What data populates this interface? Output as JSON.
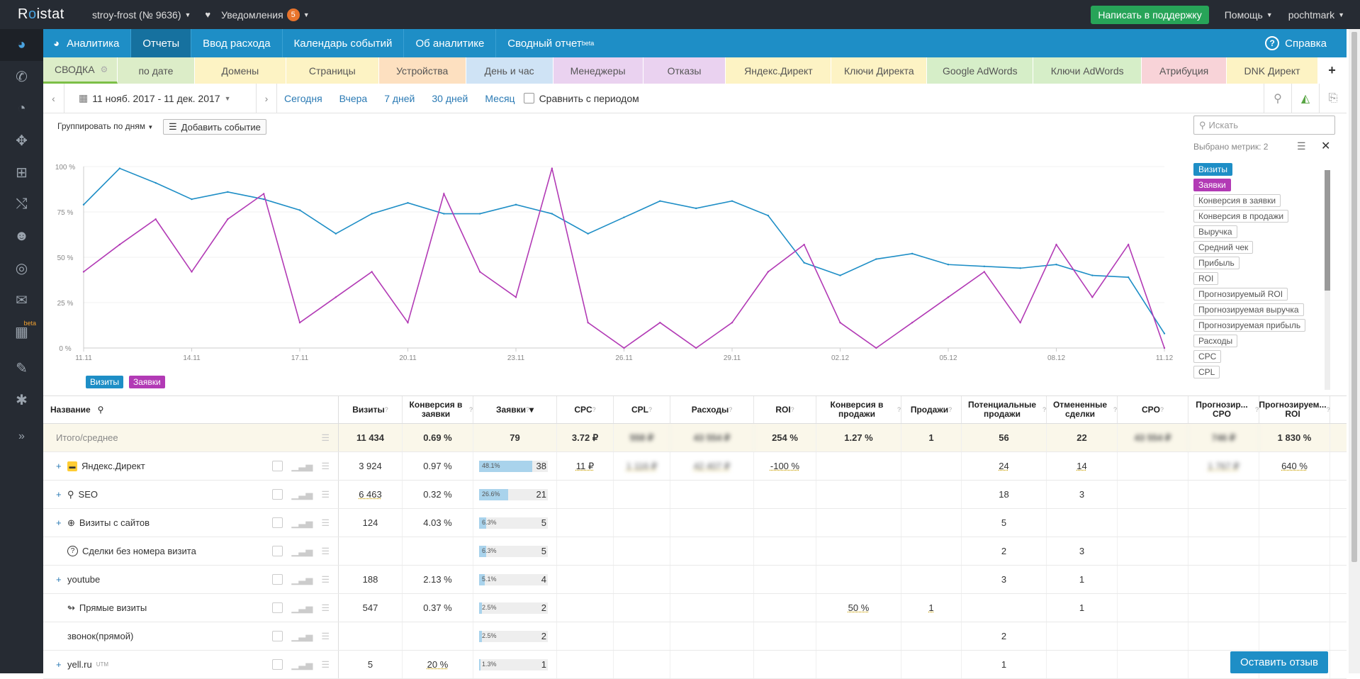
{
  "topbar": {
    "logo_left": "R",
    "logo_dot": "o",
    "logo_right": "istat",
    "project": "stroy-frost (№ 9636)",
    "notifications_label": "Уведомления",
    "notifications_count": "5",
    "support_button": "Написать в поддержку",
    "help": "Помощь",
    "user": "pochtmark"
  },
  "sidebar": {
    "icons": [
      "pie-chart-icon",
      "phone-icon",
      "dashboard-icon",
      "crosshair-icon",
      "sitemap-icon",
      "shuffle-icon",
      "users-icon",
      "target-icon",
      "mail-icon",
      "barcode-icon",
      "tools-icon",
      "settings-icon",
      "expand-icon"
    ],
    "beta": "beta"
  },
  "nav": {
    "items": [
      "Аналитика",
      "Отчеты",
      "Ввод расхода",
      "Календарь событий",
      "Об аналитике",
      "Сводный отчет"
    ],
    "beta_sup": "beta",
    "help": "Справка"
  },
  "tabs": [
    {
      "label": "СВОДКА",
      "color": "#dcedc8"
    },
    {
      "label": "по дате",
      "color": "#dcedc8"
    },
    {
      "label": "Домены",
      "color": "#fdf3c4"
    },
    {
      "label": "Страницы",
      "color": "#fdf3c4"
    },
    {
      "label": "Устройства",
      "color": "#fde0c0"
    },
    {
      "label": "День и час",
      "color": "#cfe3f5"
    },
    {
      "label": "Менеджеры",
      "color": "#ead2f0"
    },
    {
      "label": "Отказы",
      "color": "#ead2f0"
    },
    {
      "label": "Яндекс.Директ",
      "color": "#fdf3c4"
    },
    {
      "label": "Ключи Директа",
      "color": "#fdf3c4"
    },
    {
      "label": "Google AdWords",
      "color": "#d6eec8"
    },
    {
      "label": "Ключи AdWords",
      "color": "#d6eec8"
    },
    {
      "label": "Атрибуция",
      "color": "#f8d3d8"
    },
    {
      "label": "DNK Директ",
      "color": "#fdf3c4"
    },
    {
      "label": "+",
      "color": "#ffffff"
    }
  ],
  "datebar": {
    "range": "11 нояб. 2017 - 11 дек. 2017",
    "presets": [
      "Сегодня",
      "Вчера",
      "7 дней",
      "30 дней",
      "Месяц"
    ],
    "compare": "Сравнить с периодом"
  },
  "chart": {
    "group_by": "Группировать по дням",
    "add_event": "Добавить событие",
    "legend": [
      {
        "name": "Визиты",
        "color": "#1e8ec6"
      },
      {
        "name": "Заявки",
        "color": "#b23ab5"
      }
    ]
  },
  "chart_data": {
    "type": "line",
    "y_ticks": [
      "0 %",
      "25 %",
      "50 %",
      "75 %",
      "100 %"
    ],
    "x_ticks": [
      "11.11",
      "14.11",
      "17.11",
      "20.11",
      "23.11",
      "26.11",
      "29.11",
      "02.12",
      "05.12",
      "08.12",
      "11.12"
    ],
    "ylim": [
      0,
      100
    ],
    "x": [
      "11.11",
      "12.11",
      "13.11",
      "14.11",
      "15.11",
      "16.11",
      "17.11",
      "18.11",
      "19.11",
      "20.11",
      "21.11",
      "22.11",
      "23.11",
      "24.11",
      "25.11",
      "26.11",
      "27.11",
      "28.11",
      "29.11",
      "30.11",
      "01.12",
      "02.12",
      "03.12",
      "04.12",
      "05.12",
      "06.12",
      "07.12",
      "08.12",
      "09.12",
      "10.12",
      "11.12"
    ],
    "series": [
      {
        "name": "Визиты",
        "color": "#1e8ec6",
        "values": [
          79,
          99,
          91,
          82,
          86,
          82,
          76,
          63,
          74,
          80,
          74,
          74,
          79,
          74,
          63,
          72,
          81,
          77,
          81,
          73,
          47,
          40,
          49,
          52,
          46,
          45,
          44,
          46,
          40,
          39,
          8
        ]
      },
      {
        "name": "Заявки",
        "color": "#b23ab5",
        "values": [
          42,
          57,
          71,
          42,
          71,
          85,
          14,
          28,
          42,
          14,
          85,
          42,
          28,
          99,
          14,
          0,
          14,
          0,
          14,
          42,
          57,
          14,
          0,
          14,
          28,
          42,
          14,
          57,
          28,
          57,
          0
        ]
      }
    ]
  },
  "metrics": {
    "search_placeholder": "Искать",
    "selected": "Выбрано метрик: 2",
    "items": [
      {
        "label": "Визиты",
        "state": "blue"
      },
      {
        "label": "Заявки",
        "state": "purple"
      },
      {
        "label": "Конверсия в заявки",
        "state": ""
      },
      {
        "label": "Конверсия в продажи",
        "state": ""
      },
      {
        "label": "Выручка",
        "state": ""
      },
      {
        "label": "Средний чек",
        "state": ""
      },
      {
        "label": "Прибыль",
        "state": ""
      },
      {
        "label": "ROI",
        "state": ""
      },
      {
        "label": "Прогнозируемый ROI",
        "state": ""
      },
      {
        "label": "Прогнозируемая выручка",
        "state": ""
      },
      {
        "label": "Прогнозируемая прибыль",
        "state": ""
      },
      {
        "label": "Расходы",
        "state": ""
      },
      {
        "label": "CPC",
        "state": ""
      },
      {
        "label": "CPL",
        "state": ""
      }
    ]
  },
  "table": {
    "headers": [
      "Название",
      "Визиты",
      "Конверсия в заявки",
      "Заявки",
      "CPC",
      "CPL",
      "Расходы",
      "ROI",
      "Конверсия в продажи",
      "Продажи",
      "Потенциальные продажи",
      "Отмененные сделки",
      "CPO",
      "Прогнозир... CPO",
      "Прогнозируем... ROI"
    ],
    "total": {
      "name": "Итого/среднее",
      "cells": [
        "11 434",
        "0.69 %",
        "79",
        "3.72 ₽",
        "558 ₽",
        "43 554 ₽",
        "254 %",
        "1.27 %",
        "1",
        "56",
        "22",
        "43 554 ₽",
        "746 ₽",
        "1 830 %"
      ]
    },
    "rows": [
      {
        "plus": "+",
        "icon": "yandex-icon",
        "name": "Яндекс.Директ",
        "visits": "3 924",
        "conv": "0.97 %",
        "bar_pct": "48.1%",
        "bar_fill": 0.481,
        "leads": "38",
        "cpc": "11 ₽",
        "cpl": "1 116 ₽",
        "cost": "42 407 ₽",
        "roi": "-100 %",
        "conv_sales": "",
        "sales": "",
        "potential": "24",
        "cancelled": "14",
        "cpo": "",
        "fcpo": "1 767 ₽",
        "froi": "640 %"
      },
      {
        "plus": "+",
        "icon": "search-icon",
        "name": "SEO",
        "visits": "6 463",
        "conv": "0.32 %",
        "bar_pct": "26.6%",
        "bar_fill": 0.266,
        "leads": "21",
        "cpc": "",
        "cpl": "",
        "cost": "",
        "roi": "",
        "conv_sales": "",
        "sales": "",
        "potential": "18",
        "cancelled": "3",
        "cpo": "",
        "fcpo": "",
        "froi": ""
      },
      {
        "plus": "+",
        "icon": "globe-icon",
        "name": "Визиты с сайтов",
        "visits": "124",
        "conv": "4.03 %",
        "bar_pct": "6.3%",
        "bar_fill": 0.063,
        "leads": "5",
        "cpc": "",
        "cpl": "",
        "cost": "",
        "roi": "",
        "conv_sales": "",
        "sales": "",
        "potential": "5",
        "cancelled": "",
        "cpo": "",
        "fcpo": "",
        "froi": ""
      },
      {
        "plus": "",
        "icon": "question-icon",
        "name": "Сделки без номера визита",
        "visits": "",
        "conv": "",
        "bar_pct": "6.3%",
        "bar_fill": 0.063,
        "leads": "5",
        "cpc": "",
        "cpl": "",
        "cost": "",
        "roi": "",
        "conv_sales": "",
        "sales": "",
        "potential": "2",
        "cancelled": "3",
        "cpo": "",
        "fcpo": "",
        "froi": ""
      },
      {
        "plus": "+",
        "icon": "",
        "name": "youtube",
        "visits": "188",
        "conv": "2.13 %",
        "bar_pct": "5.1%",
        "bar_fill": 0.051,
        "leads": "4",
        "cpc": "",
        "cpl": "",
        "cost": "",
        "roi": "",
        "conv_sales": "",
        "sales": "",
        "potential": "3",
        "cancelled": "1",
        "cpo": "",
        "fcpo": "",
        "froi": ""
      },
      {
        "plus": "",
        "icon": "direct-visit-icon",
        "name": "Прямые визиты",
        "visits": "547",
        "conv": "0.37 %",
        "bar_pct": "2.5%",
        "bar_fill": 0.025,
        "leads": "2",
        "cpc": "",
        "cpl": "",
        "cost": "",
        "roi": "",
        "conv_sales": "50 %",
        "sales": "1",
        "potential": "",
        "cancelled": "1",
        "cpo": "",
        "fcpo": "",
        "froi": ""
      },
      {
        "plus": "",
        "icon": "",
        "name": "звонок(прямой)",
        "visits": "",
        "conv": "",
        "bar_pct": "2.5%",
        "bar_fill": 0.025,
        "leads": "2",
        "cpc": "",
        "cpl": "",
        "cost": "",
        "roi": "",
        "conv_sales": "",
        "sales": "",
        "potential": "2",
        "cancelled": "",
        "cpo": "",
        "fcpo": "",
        "froi": ""
      },
      {
        "plus": "+",
        "icon": "",
        "name": "yell.ru",
        "sup": "UTM",
        "visits": "5",
        "conv": "20 %",
        "bar_pct": "1.3%",
        "bar_fill": 0.013,
        "leads": "1",
        "cpc": "",
        "cpl": "",
        "cost": "",
        "roi": "",
        "conv_sales": "",
        "sales": "",
        "potential": "1",
        "cancelled": "",
        "cpo": "",
        "fcpo": "",
        "froi": ""
      }
    ]
  },
  "feedback_button": "Оставить отзыв"
}
